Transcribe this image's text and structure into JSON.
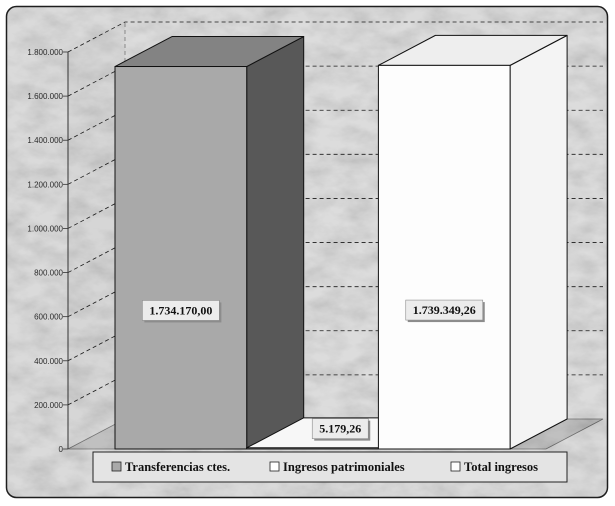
{
  "chart_data": {
    "type": "bar",
    "three_d": true,
    "grid": true,
    "legend": "bottom",
    "ylim": [
      0,
      1800000
    ],
    "y_ticks": [
      0,
      200000,
      400000,
      600000,
      800000,
      1000000,
      1200000,
      1400000,
      1600000,
      1800000
    ],
    "y_tick_labels": [
      "0",
      "200.000",
      "400.000",
      "600.000",
      "800.000",
      "1.000.000",
      "1.200.000",
      "1.400.000",
      "1.600.000",
      "1.800.000"
    ],
    "series": [
      {
        "name": "Transferencias ctes.",
        "values": [
          1734170.0
        ],
        "data_labels": [
          "1.734.170,00"
        ],
        "color": "#a9a9a9",
        "side_color": "#585858",
        "top_color": "#838383"
      },
      {
        "name": "Ingresos patrimoniales",
        "values": [
          5179.26
        ],
        "data_labels": [
          "5.179,26"
        ],
        "color": "#ffffff",
        "side_color": "#f2f2f2",
        "top_color": "#f7f7f7"
      },
      {
        "name": "Total ingresos",
        "values": [
          1739349.26
        ],
        "data_labels": [
          "1.739.349,26"
        ],
        "color": "#fdfdfd",
        "side_color": "#f4f4f4",
        "top_color": "#eeeeee"
      }
    ]
  }
}
